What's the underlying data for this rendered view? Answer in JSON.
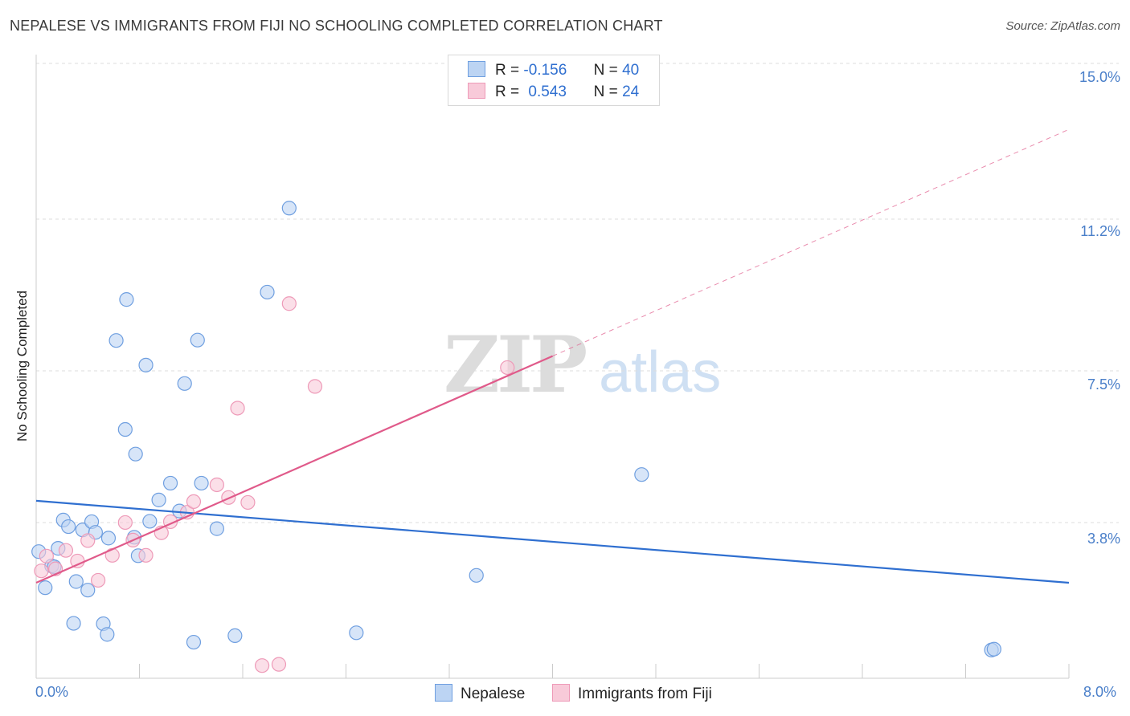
{
  "title": "NEPALESE VS IMMIGRANTS FROM FIJI NO SCHOOLING COMPLETED CORRELATION CHART",
  "source": "Source: ZipAtlas.com",
  "watermark": {
    "zip": "ZIP",
    "atlas": "atlas"
  },
  "legend": {
    "rows": [
      {
        "r_label": "R =",
        "r_value": "-0.156",
        "n_label": "N =",
        "n_value": "40"
      },
      {
        "r_label": "R =",
        "r_value": "0.543",
        "n_label": "N =",
        "n_value": "24"
      }
    ]
  },
  "chart_data": {
    "type": "scatter",
    "title": "NEPALESE VS IMMIGRANTS FROM FIJI NO SCHOOLING COMPLETED CORRELATION CHART",
    "xlabel": "",
    "ylabel": "No Schooling Completed",
    "xlim": [
      0,
      8.0
    ],
    "ylim": [
      0,
      15.0
    ],
    "x_tick_labels": [
      "0.0%",
      "8.0%"
    ],
    "y_ticks": [
      3.8,
      7.5,
      11.2,
      15.0
    ],
    "y_tick_labels": [
      "3.8%",
      "7.5%",
      "11.2%",
      "15.0%"
    ],
    "grid": true,
    "legend_position": "top-center",
    "series": [
      {
        "name": "Nepalese",
        "color": "#6f9fe0",
        "fill": "#bcd4f3",
        "trend_color": "#2f6fd0",
        "r": -0.156,
        "n": 40,
        "trend": {
          "x0": 0.0,
          "y0": 4.33,
          "x1": 8.0,
          "y1": 2.33
        },
        "points": [
          [
            0.02,
            3.09
          ],
          [
            0.07,
            2.21
          ],
          [
            0.12,
            2.74
          ],
          [
            0.17,
            3.17
          ],
          [
            0.21,
            3.86
          ],
          [
            0.25,
            3.7
          ],
          [
            0.29,
            1.34
          ],
          [
            0.31,
            2.36
          ],
          [
            0.36,
            3.62
          ],
          [
            0.4,
            2.15
          ],
          [
            0.43,
            3.82
          ],
          [
            0.46,
            3.56
          ],
          [
            0.52,
            1.33
          ],
          [
            0.55,
            1.07
          ],
          [
            0.56,
            3.42
          ],
          [
            0.62,
            8.24
          ],
          [
            0.69,
            6.07
          ],
          [
            0.7,
            9.24
          ],
          [
            0.76,
            3.44
          ],
          [
            0.77,
            5.47
          ],
          [
            0.79,
            2.99
          ],
          [
            0.85,
            7.64
          ],
          [
            0.88,
            3.83
          ],
          [
            0.95,
            4.35
          ],
          [
            1.04,
            4.76
          ],
          [
            1.11,
            4.08
          ],
          [
            1.15,
            7.19
          ],
          [
            1.22,
            0.88
          ],
          [
            1.25,
            8.25
          ],
          [
            1.28,
            4.76
          ],
          [
            1.4,
            3.65
          ],
          [
            1.54,
            1.04
          ],
          [
            1.79,
            9.42
          ],
          [
            1.96,
            11.47
          ],
          [
            2.48,
            1.11
          ],
          [
            3.41,
            2.51
          ],
          [
            4.69,
            4.97
          ],
          [
            7.4,
            0.69
          ],
          [
            7.42,
            0.71
          ],
          [
            0.14,
            2.72
          ]
        ]
      },
      {
        "name": "Immigrants from Fiji",
        "color": "#ee9ab8",
        "fill": "#f8cad9",
        "trend_color": "#e05a8a",
        "r": 0.543,
        "n": 24,
        "trend": {
          "x0": 0.0,
          "y0": 2.33,
          "x1": 4.0,
          "y1": 7.86
        },
        "trend_dashed": {
          "x0": 4.0,
          "y0": 7.86,
          "x1": 8.0,
          "y1": 13.39
        },
        "points": [
          [
            0.04,
            2.62
          ],
          [
            0.08,
            2.98
          ],
          [
            0.15,
            2.67
          ],
          [
            0.23,
            3.12
          ],
          [
            0.32,
            2.86
          ],
          [
            0.4,
            3.36
          ],
          [
            0.48,
            2.39
          ],
          [
            0.59,
            3.0
          ],
          [
            0.69,
            3.8
          ],
          [
            0.75,
            3.37
          ],
          [
            0.85,
            3.0
          ],
          [
            0.97,
            3.55
          ],
          [
            1.04,
            3.82
          ],
          [
            1.17,
            4.05
          ],
          [
            1.22,
            4.31
          ],
          [
            1.4,
            4.72
          ],
          [
            1.49,
            4.41
          ],
          [
            1.64,
            4.29
          ],
          [
            1.56,
            6.59
          ],
          [
            1.75,
            0.31
          ],
          [
            1.88,
            0.34
          ],
          [
            1.96,
            9.14
          ],
          [
            2.16,
            7.12
          ],
          [
            3.65,
            7.58
          ]
        ]
      }
    ]
  }
}
